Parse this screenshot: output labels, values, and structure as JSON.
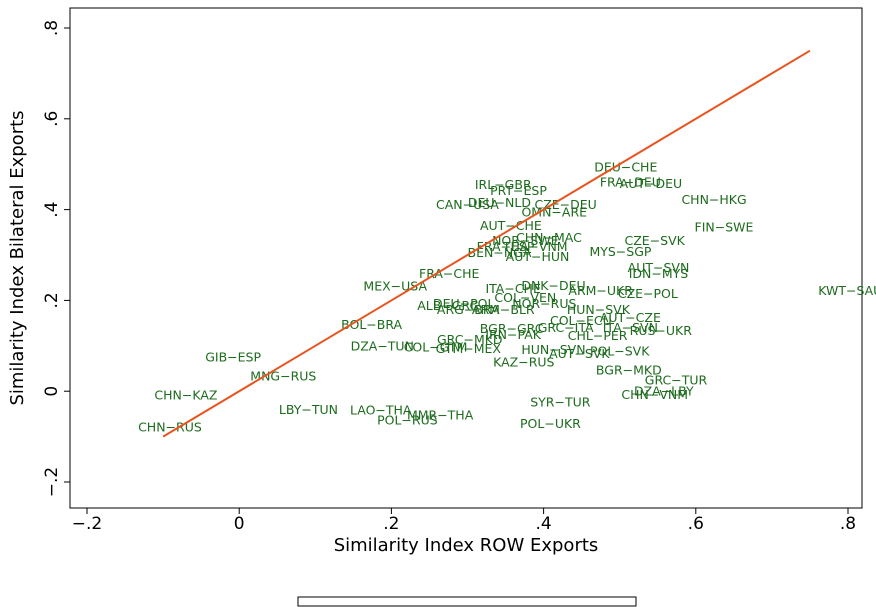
{
  "chart_data": {
    "type": "scatter",
    "x_label": "Similarity Index ROW Exports",
    "y_label": "Similarity Index Bilateral Exports",
    "xlim": [
      -0.2,
      0.8
    ],
    "ylim": [
      -0.2,
      0.8
    ],
    "xticks": [
      {
        "value": -0.2,
        "label": "−.2"
      },
      0,
      {
        "value": 0.2,
        "label": ".2"
      },
      {
        "value": 0.4,
        "label": ".4"
      },
      {
        "value": 0.6,
        "label": ".6"
      },
      {
        "value": 0.8,
        "label": ".8"
      }
    ],
    "yticks": [
      {
        "value": -0.2,
        "label": "−.2"
      },
      0,
      {
        "value": 0.2,
        "label": ".2"
      },
      {
        "value": 0.4,
        "label": ".4"
      },
      {
        "value": 0.6,
        "label": ".6"
      },
      {
        "value": 0.8,
        "label": ".8"
      }
    ],
    "label_color": "#1d6b1d",
    "labels": [
      "KWT−SAU",
      "DEU−CHE",
      "FRA−DEU",
      "AUT−DEU",
      "CHN−HKG",
      "IRL−GBR",
      "PRT−ESP",
      "CAN−USA",
      "DEU−NLD",
      "CZE−DEU",
      "OMN−ARE",
      "FIN−SWE",
      "AUT−CHE",
      "CHN−MAC",
      "NOR−SWE",
      "CZE−SVK",
      "FRA−ESP",
      "THA−VNM",
      "BEN−NGA",
      "AUT−HUN",
      "MYS−SGP",
      "AUT−SVN",
      "IDN−MYS",
      "FRA−CHE",
      "MEX−USA",
      "ITA−CHE",
      "DNK−DEU",
      "ARM−UKR",
      "CZE−POL",
      "COL−VEN",
      "ALB−GRC",
      "DEU−POL",
      "NOR−RUS",
      "HUN−SVK",
      "AUT−CZE",
      "ARG−BRA",
      "ARM−BLR",
      "BOL−BRA",
      "COL−ECU",
      "BGR−GRC",
      "GRC−ITA",
      "ITA−SVN",
      "RUS−UKR",
      "IRN−PAK",
      "CHL−PER",
      "GRC−MKD",
      "DZA−TUN",
      "COL−GTM",
      "GTM−MEX",
      "HUN−SVN",
      "POL−SVK",
      "AUT−SVK",
      "GIB−ESP",
      "KAZ−RUS",
      "BGR−MKD",
      "MNG−RUS",
      "GRC−TUR",
      "CHN−KAZ",
      "DZA−LBY",
      "CHN−VNM",
      "SYR−TUR",
      "CHN−RUS",
      "POL−UKR",
      "POL−RUS",
      "MMR−THA",
      "LBY−TUN",
      "LAO−THA"
    ],
    "x": [
      0.803,
      0.508,
      0.514,
      0.541,
      0.624,
      0.347,
      0.367,
      0.3,
      0.342,
      0.429,
      0.414,
      0.637,
      0.357,
      0.407,
      0.376,
      0.546,
      0.35,
      0.389,
      0.342,
      0.392,
      0.501,
      0.551,
      0.551,
      0.276,
      0.205,
      0.36,
      0.413,
      0.475,
      0.537,
      0.376,
      0.274,
      0.295,
      0.401,
      0.472,
      0.514,
      0.301,
      0.347,
      0.174,
      0.449,
      0.358,
      0.429,
      0.514,
      0.554,
      0.36,
      0.471,
      0.303,
      0.188,
      0.258,
      0.301,
      0.413,
      0.5,
      0.447,
      -0.008,
      0.374,
      0.512,
      0.058,
      0.574,
      -0.07,
      0.558,
      0.546,
      0.422,
      -0.091,
      0.409,
      0.221,
      0.264,
      0.091,
      0.186
    ],
    "values": [
      0.22,
      0.492,
      0.459,
      0.455,
      0.42,
      0.453,
      0.44,
      0.409,
      0.413,
      0.409,
      0.393,
      0.36,
      0.363,
      0.336,
      0.33,
      0.33,
      0.317,
      0.317,
      0.303,
      0.295,
      0.305,
      0.27,
      0.257,
      0.257,
      0.229,
      0.224,
      0.231,
      0.22,
      0.213,
      0.204,
      0.187,
      0.191,
      0.191,
      0.178,
      0.16,
      0.178,
      0.178,
      0.145,
      0.154,
      0.136,
      0.138,
      0.138,
      0.132,
      0.123,
      0.121,
      0.112,
      0.097,
      0.095,
      0.092,
      0.09,
      0.086,
      0.081,
      0.073,
      0.062,
      0.044,
      0.031,
      0.022,
      -0.011,
      -0.002,
      -0.009,
      -0.026,
      -0.081,
      -0.073,
      -0.066,
      -0.055,
      -0.042,
      -0.044
    ],
    "series": [
      {
        "name": "45 Degree Line",
        "color": "#e8541e",
        "x": [
          -0.1,
          0.75
        ],
        "values": [
          -0.1,
          0.75
        ]
      }
    ]
  }
}
